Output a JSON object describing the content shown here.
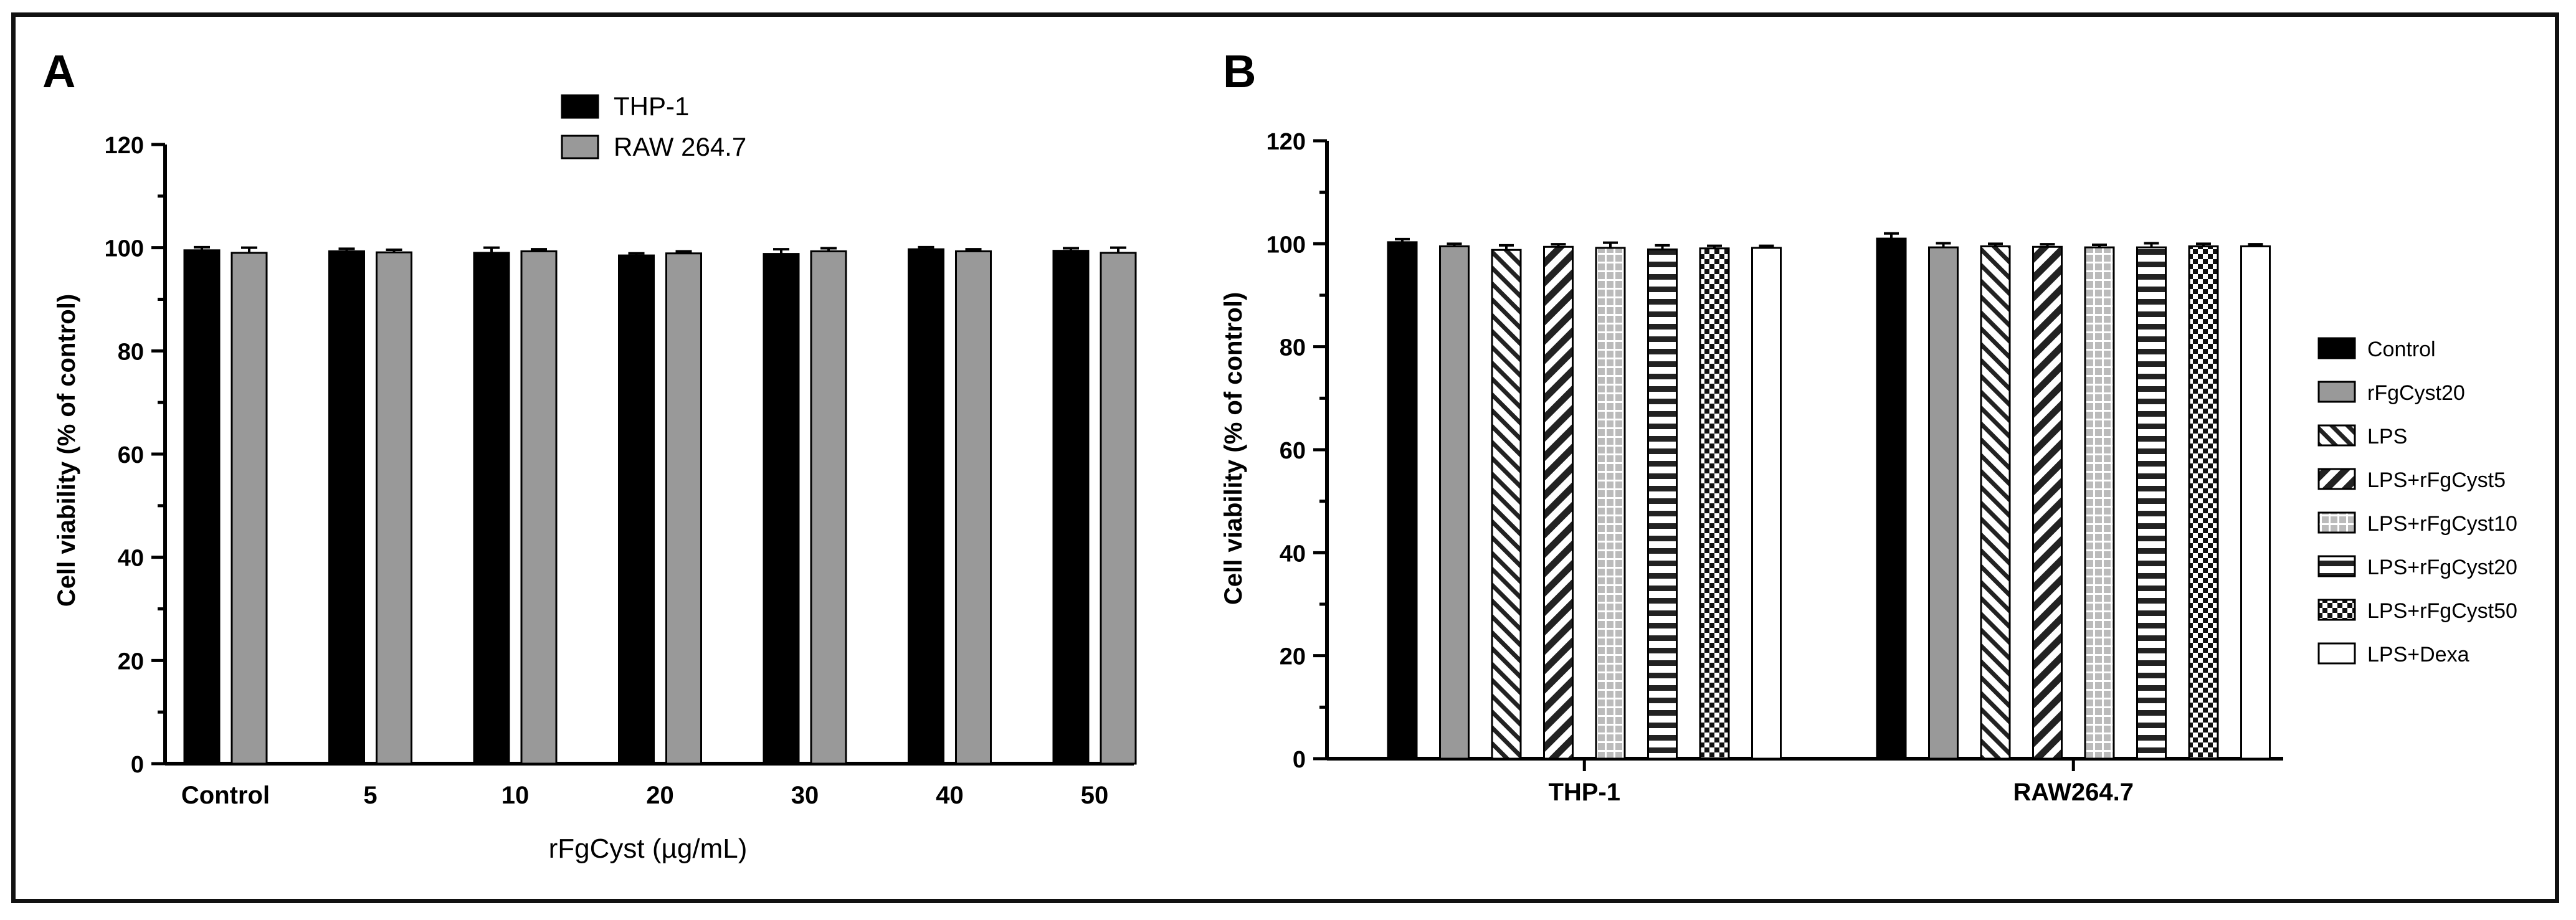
{
  "chart_data": [
    {
      "panel_label": "A",
      "type": "bar",
      "title": "",
      "xlabel": "rFgCyst (µg/mL)",
      "ylabel": "Cell viability (% of control)",
      "ylim": [
        0,
        120
      ],
      "yticks": [
        0,
        20,
        40,
        60,
        80,
        100,
        120
      ],
      "categories": [
        "Control",
        "5",
        "10",
        "20",
        "30",
        "40",
        "50"
      ],
      "legend_position": "top-center",
      "series": [
        {
          "name": "THP-1",
          "color": "#000000",
          "pattern": "solid",
          "values": [
            99.5,
            99.3,
            99.0,
            98.5,
            98.8,
            99.7,
            99.4
          ],
          "errors": [
            0.6,
            0.5,
            1.0,
            0.4,
            0.9,
            0.4,
            0.5
          ]
        },
        {
          "name": "RAW 264.7",
          "color": "#999999",
          "pattern": "solid",
          "values": [
            99.0,
            99.1,
            99.3,
            98.9,
            99.3,
            99.3,
            99.0
          ],
          "errors": [
            1.0,
            0.5,
            0.4,
            0.4,
            0.6,
            0.4,
            1.0
          ]
        }
      ]
    },
    {
      "panel_label": "B",
      "type": "bar",
      "title": "",
      "xlabel": "",
      "ylabel": "Cell viability (% of control)",
      "ylim": [
        0,
        120
      ],
      "yticks": [
        0,
        20,
        40,
        60,
        80,
        100,
        120
      ],
      "categories": [
        "THP-1",
        "RAW264.7"
      ],
      "legend_position": "right",
      "series": [
        {
          "name": "Control",
          "pattern": "solid-black",
          "values": [
            100.3,
            101.0
          ],
          "errors": [
            0.6,
            1.0
          ]
        },
        {
          "name": "rFgCyst20",
          "pattern": "solid-gray",
          "values": [
            99.5,
            99.3
          ],
          "errors": [
            0.5,
            0.8
          ]
        },
        {
          "name": "LPS",
          "pattern": "diag-up",
          "values": [
            98.8,
            99.5
          ],
          "errors": [
            0.9,
            0.5
          ]
        },
        {
          "name": "LPS+rFgCyst5",
          "pattern": "diag-down",
          "values": [
            99.4,
            99.4
          ],
          "errors": [
            0.5,
            0.5
          ]
        },
        {
          "name": "LPS+rFgCyst10",
          "pattern": "dotted-grid",
          "values": [
            99.2,
            99.3
          ],
          "errors": [
            1.0,
            0.5
          ]
        },
        {
          "name": "LPS+rFgCyst20",
          "pattern": "horizontal",
          "values": [
            98.9,
            99.3
          ],
          "errors": [
            0.8,
            0.8
          ]
        },
        {
          "name": "LPS+rFgCyst50",
          "pattern": "checker",
          "values": [
            99.1,
            99.5
          ],
          "errors": [
            0.5,
            0.5
          ]
        },
        {
          "name": "LPS+Dexa",
          "pattern": "white",
          "values": [
            99.2,
            99.5
          ],
          "errors": [
            0.4,
            0.4
          ]
        }
      ]
    }
  ]
}
